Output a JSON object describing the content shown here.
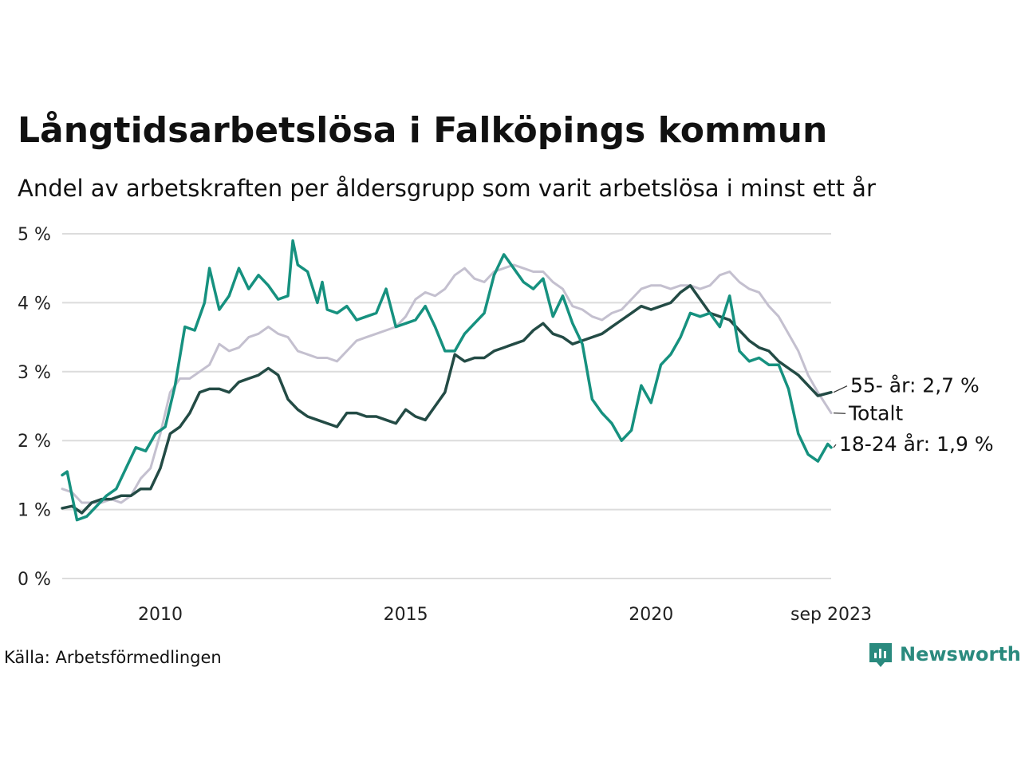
{
  "title": "Långtidsarbetslösa i Falköpings kommun",
  "subtitle": "Andel av arbetskraften per åldersgrupp som varit arbetslösa i minst ett år",
  "source": "Källa: Arbetsförmedlingen",
  "brand": "Newsworthy",
  "icons": {
    "brand_logo": "chart-bubble-icon"
  },
  "colors": {
    "total": "#c4c0cf",
    "age55": "#234b45",
    "youth": "#16917f",
    "grid": "#dcdcdc"
  },
  "chart_data": {
    "type": "line",
    "title": "Långtidsarbetslösa i Falköpings kommun",
    "subtitle": "Andel av arbetskraften per åldersgrupp som varit arbetslösa i minst ett år",
    "ylim": [
      0,
      5
    ],
    "xlim": [
      2008.0,
      2023.67
    ],
    "y_ticks": [
      0,
      1,
      2,
      3,
      4,
      5
    ],
    "y_tick_labels": [
      "0 %",
      "1 %",
      "2 %",
      "3 %",
      "4 %",
      "5 %"
    ],
    "x_ticks": [
      2010,
      2015,
      2020,
      2023.67
    ],
    "x_tick_labels": [
      "2010",
      "2015",
      "2020",
      "sep 2023"
    ],
    "grid": true,
    "series": [
      {
        "key": "total",
        "name": "Totalt",
        "end_label": "Totalt",
        "points": [
          [
            2008.0,
            1.3
          ],
          [
            2008.2,
            1.25
          ],
          [
            2008.4,
            1.1
          ],
          [
            2008.6,
            1.1
          ],
          [
            2008.8,
            1.1
          ],
          [
            2009.0,
            1.15
          ],
          [
            2009.2,
            1.1
          ],
          [
            2009.4,
            1.2
          ],
          [
            2009.6,
            1.45
          ],
          [
            2009.8,
            1.6
          ],
          [
            2010.0,
            2.1
          ],
          [
            2010.2,
            2.7
          ],
          [
            2010.4,
            2.9
          ],
          [
            2010.6,
            2.9
          ],
          [
            2010.8,
            3.0
          ],
          [
            2011.0,
            3.1
          ],
          [
            2011.2,
            3.4
          ],
          [
            2011.4,
            3.3
          ],
          [
            2011.6,
            3.35
          ],
          [
            2011.8,
            3.5
          ],
          [
            2012.0,
            3.55
          ],
          [
            2012.2,
            3.65
          ],
          [
            2012.4,
            3.55
          ],
          [
            2012.6,
            3.5
          ],
          [
            2012.8,
            3.3
          ],
          [
            2013.0,
            3.25
          ],
          [
            2013.2,
            3.2
          ],
          [
            2013.4,
            3.2
          ],
          [
            2013.6,
            3.15
          ],
          [
            2013.8,
            3.3
          ],
          [
            2014.0,
            3.45
          ],
          [
            2014.2,
            3.5
          ],
          [
            2014.4,
            3.55
          ],
          [
            2014.6,
            3.6
          ],
          [
            2014.8,
            3.65
          ],
          [
            2015.0,
            3.8
          ],
          [
            2015.2,
            4.05
          ],
          [
            2015.4,
            4.15
          ],
          [
            2015.6,
            4.1
          ],
          [
            2015.8,
            4.2
          ],
          [
            2016.0,
            4.4
          ],
          [
            2016.2,
            4.5
          ],
          [
            2016.4,
            4.35
          ],
          [
            2016.6,
            4.3
          ],
          [
            2016.8,
            4.45
          ],
          [
            2017.0,
            4.5
          ],
          [
            2017.2,
            4.55
          ],
          [
            2017.4,
            4.5
          ],
          [
            2017.6,
            4.45
          ],
          [
            2017.8,
            4.45
          ],
          [
            2018.0,
            4.3
          ],
          [
            2018.2,
            4.2
          ],
          [
            2018.4,
            3.95
          ],
          [
            2018.6,
            3.9
          ],
          [
            2018.8,
            3.8
          ],
          [
            2019.0,
            3.75
          ],
          [
            2019.2,
            3.85
          ],
          [
            2019.4,
            3.9
          ],
          [
            2019.6,
            4.05
          ],
          [
            2019.8,
            4.2
          ],
          [
            2020.0,
            4.25
          ],
          [
            2020.2,
            4.25
          ],
          [
            2020.4,
            4.2
          ],
          [
            2020.6,
            4.25
          ],
          [
            2020.8,
            4.25
          ],
          [
            2021.0,
            4.2
          ],
          [
            2021.2,
            4.25
          ],
          [
            2021.4,
            4.4
          ],
          [
            2021.6,
            4.45
          ],
          [
            2021.8,
            4.3
          ],
          [
            2022.0,
            4.2
          ],
          [
            2022.2,
            4.15
          ],
          [
            2022.4,
            3.95
          ],
          [
            2022.6,
            3.8
          ],
          [
            2022.8,
            3.55
          ],
          [
            2023.0,
            3.3
          ],
          [
            2023.2,
            2.95
          ],
          [
            2023.4,
            2.7
          ],
          [
            2023.67,
            2.4
          ]
        ]
      },
      {
        "key": "age55",
        "name": "55- år",
        "end_label": "55- år: 2,7 %",
        "points": [
          [
            2008.0,
            1.02
          ],
          [
            2008.2,
            1.05
          ],
          [
            2008.4,
            0.95
          ],
          [
            2008.6,
            1.1
          ],
          [
            2008.8,
            1.15
          ],
          [
            2009.0,
            1.15
          ],
          [
            2009.2,
            1.2
          ],
          [
            2009.4,
            1.2
          ],
          [
            2009.6,
            1.3
          ],
          [
            2009.8,
            1.3
          ],
          [
            2010.0,
            1.6
          ],
          [
            2010.2,
            2.1
          ],
          [
            2010.4,
            2.2
          ],
          [
            2010.6,
            2.4
          ],
          [
            2010.8,
            2.7
          ],
          [
            2011.0,
            2.75
          ],
          [
            2011.2,
            2.75
          ],
          [
            2011.4,
            2.7
          ],
          [
            2011.6,
            2.85
          ],
          [
            2011.8,
            2.9
          ],
          [
            2012.0,
            2.95
          ],
          [
            2012.2,
            3.05
          ],
          [
            2012.4,
            2.95
          ],
          [
            2012.6,
            2.6
          ],
          [
            2012.8,
            2.45
          ],
          [
            2013.0,
            2.35
          ],
          [
            2013.2,
            2.3
          ],
          [
            2013.4,
            2.25
          ],
          [
            2013.6,
            2.2
          ],
          [
            2013.8,
            2.4
          ],
          [
            2014.0,
            2.4
          ],
          [
            2014.2,
            2.35
          ],
          [
            2014.4,
            2.35
          ],
          [
            2014.6,
            2.3
          ],
          [
            2014.8,
            2.25
          ],
          [
            2015.0,
            2.45
          ],
          [
            2015.2,
            2.35
          ],
          [
            2015.4,
            2.3
          ],
          [
            2015.6,
            2.5
          ],
          [
            2015.8,
            2.7
          ],
          [
            2016.0,
            3.25
          ],
          [
            2016.2,
            3.15
          ],
          [
            2016.4,
            3.2
          ],
          [
            2016.6,
            3.2
          ],
          [
            2016.8,
            3.3
          ],
          [
            2017.0,
            3.35
          ],
          [
            2017.2,
            3.4
          ],
          [
            2017.4,
            3.45
          ],
          [
            2017.6,
            3.6
          ],
          [
            2017.8,
            3.7
          ],
          [
            2018.0,
            3.55
          ],
          [
            2018.2,
            3.5
          ],
          [
            2018.4,
            3.4
          ],
          [
            2018.6,
            3.45
          ],
          [
            2018.8,
            3.5
          ],
          [
            2019.0,
            3.55
          ],
          [
            2019.2,
            3.65
          ],
          [
            2019.4,
            3.75
          ],
          [
            2019.6,
            3.85
          ],
          [
            2019.8,
            3.95
          ],
          [
            2020.0,
            3.9
          ],
          [
            2020.2,
            3.95
          ],
          [
            2020.4,
            4.0
          ],
          [
            2020.6,
            4.15
          ],
          [
            2020.8,
            4.25
          ],
          [
            2021.0,
            4.05
          ],
          [
            2021.2,
            3.85
          ],
          [
            2021.4,
            3.8
          ],
          [
            2021.6,
            3.75
          ],
          [
            2021.8,
            3.6
          ],
          [
            2022.0,
            3.45
          ],
          [
            2022.2,
            3.35
          ],
          [
            2022.4,
            3.3
          ],
          [
            2022.6,
            3.15
          ],
          [
            2022.8,
            3.05
          ],
          [
            2023.0,
            2.95
          ],
          [
            2023.2,
            2.8
          ],
          [
            2023.4,
            2.65
          ],
          [
            2023.67,
            2.7
          ]
        ]
      },
      {
        "key": "youth",
        "name": "18-24 år",
        "end_label": "18-24 år: 1,9 %",
        "points": [
          [
            2008.0,
            1.5
          ],
          [
            2008.1,
            1.55
          ],
          [
            2008.2,
            1.2
          ],
          [
            2008.3,
            0.85
          ],
          [
            2008.5,
            0.9
          ],
          [
            2008.7,
            1.05
          ],
          [
            2008.9,
            1.2
          ],
          [
            2009.1,
            1.3
          ],
          [
            2009.3,
            1.6
          ],
          [
            2009.5,
            1.9
          ],
          [
            2009.7,
            1.85
          ],
          [
            2009.9,
            2.1
          ],
          [
            2010.1,
            2.2
          ],
          [
            2010.3,
            2.8
          ],
          [
            2010.5,
            3.65
          ],
          [
            2010.7,
            3.6
          ],
          [
            2010.9,
            4.0
          ],
          [
            2011.0,
            4.5
          ],
          [
            2011.2,
            3.9
          ],
          [
            2011.4,
            4.1
          ],
          [
            2011.6,
            4.5
          ],
          [
            2011.8,
            4.2
          ],
          [
            2012.0,
            4.4
          ],
          [
            2012.2,
            4.25
          ],
          [
            2012.4,
            4.05
          ],
          [
            2012.6,
            4.1
          ],
          [
            2012.7,
            4.9
          ],
          [
            2012.8,
            4.55
          ],
          [
            2013.0,
            4.45
          ],
          [
            2013.2,
            4.0
          ],
          [
            2013.3,
            4.3
          ],
          [
            2013.4,
            3.9
          ],
          [
            2013.6,
            3.85
          ],
          [
            2013.8,
            3.95
          ],
          [
            2014.0,
            3.75
          ],
          [
            2014.2,
            3.8
          ],
          [
            2014.4,
            3.85
          ],
          [
            2014.6,
            4.2
          ],
          [
            2014.8,
            3.65
          ],
          [
            2015.0,
            3.7
          ],
          [
            2015.2,
            3.75
          ],
          [
            2015.4,
            3.95
          ],
          [
            2015.6,
            3.65
          ],
          [
            2015.8,
            3.3
          ],
          [
            2016.0,
            3.3
          ],
          [
            2016.2,
            3.55
          ],
          [
            2016.4,
            3.7
          ],
          [
            2016.6,
            3.85
          ],
          [
            2016.8,
            4.4
          ],
          [
            2017.0,
            4.7
          ],
          [
            2017.2,
            4.5
          ],
          [
            2017.4,
            4.3
          ],
          [
            2017.6,
            4.2
          ],
          [
            2017.8,
            4.35
          ],
          [
            2018.0,
            3.8
          ],
          [
            2018.2,
            4.1
          ],
          [
            2018.4,
            3.7
          ],
          [
            2018.6,
            3.4
          ],
          [
            2018.8,
            2.6
          ],
          [
            2019.0,
            2.4
          ],
          [
            2019.2,
            2.25
          ],
          [
            2019.4,
            2.0
          ],
          [
            2019.6,
            2.15
          ],
          [
            2019.8,
            2.8
          ],
          [
            2020.0,
            2.55
          ],
          [
            2020.2,
            3.1
          ],
          [
            2020.4,
            3.25
          ],
          [
            2020.6,
            3.5
          ],
          [
            2020.8,
            3.85
          ],
          [
            2021.0,
            3.8
          ],
          [
            2021.2,
            3.85
          ],
          [
            2021.4,
            3.65
          ],
          [
            2021.6,
            4.1
          ],
          [
            2021.8,
            3.3
          ],
          [
            2022.0,
            3.15
          ],
          [
            2022.2,
            3.2
          ],
          [
            2022.4,
            3.1
          ],
          [
            2022.6,
            3.1
          ],
          [
            2022.8,
            2.75
          ],
          [
            2023.0,
            2.1
          ],
          [
            2023.2,
            1.8
          ],
          [
            2023.4,
            1.7
          ],
          [
            2023.6,
            1.95
          ],
          [
            2023.67,
            1.9
          ]
        ]
      }
    ]
  }
}
